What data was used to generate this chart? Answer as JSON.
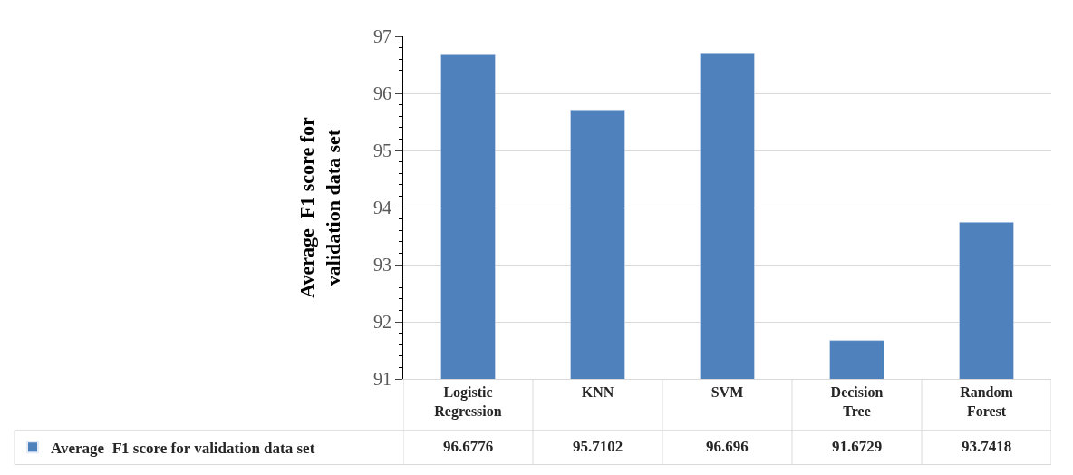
{
  "chart_data": {
    "type": "bar",
    "ylabel": "Average  F1 score for\nvalidation data set",
    "categories": [
      "Logistic Regression",
      "KNN",
      "SVM",
      "Decision Tree",
      "Random Forest"
    ],
    "series": [
      {
        "name": "Average  F1 score for validation data set",
        "color": "#4f81bd",
        "values": [
          96.6776,
          95.7102,
          96.696,
          91.6729,
          93.7418
        ]
      }
    ],
    "ylim": [
      91,
      97
    ],
    "yticks": [
      91,
      92,
      93,
      94,
      95,
      96,
      97
    ],
    "grid": "y",
    "legend": "bottom left",
    "data_labels": true
  }
}
